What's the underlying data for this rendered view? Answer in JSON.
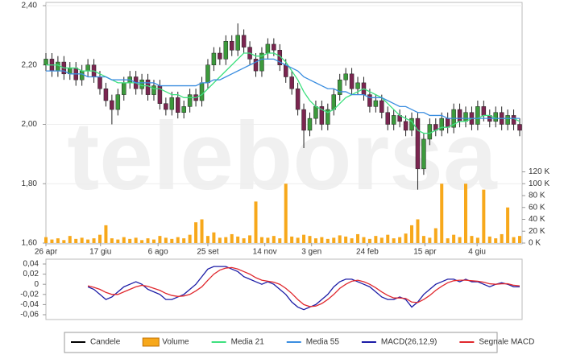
{
  "chart_data": [
    {
      "type": "candlestick",
      "watermark": "teleborsa",
      "xlim": [
        0,
        79
      ],
      "xticks": [
        {
          "value": 0,
          "label": "26 apr"
        },
        {
          "value": 9.1,
          "label": "17 giu"
        },
        {
          "value": 18.7,
          "label": "6 ago"
        },
        {
          "value": 27,
          "label": "25 set"
        },
        {
          "value": 36.5,
          "label": "14 nov"
        },
        {
          "value": 44.3,
          "label": "3 gen"
        },
        {
          "value": 53.6,
          "label": "24 feb"
        },
        {
          "value": 63.2,
          "label": "15 apr"
        },
        {
          "value": 71.9,
          "label": "4 giu"
        }
      ],
      "ylim": [
        1.6,
        2.4
      ],
      "yticks": [
        {
          "value": 1.6,
          "label": "1,60"
        },
        {
          "value": 1.8,
          "label": "1,80"
        },
        {
          "value": 2.0,
          "label": "2,00"
        },
        {
          "value": 2.2,
          "label": "2,20"
        },
        {
          "value": 2.4,
          "label": "2,40"
        }
      ],
      "y2lim": [
        0,
        400
      ],
      "y2ticks": [
        {
          "value": 0,
          "label": "0 K"
        },
        {
          "value": 20,
          "label": "20 K"
        },
        {
          "value": 40,
          "label": "40 K"
        },
        {
          "value": 60,
          "label": "60 K"
        },
        {
          "value": 80,
          "label": "80 K"
        },
        {
          "value": 100,
          "label": "100 K"
        },
        {
          "value": 120,
          "label": "120 K"
        }
      ],
      "grid": true,
      "candles": {
        "name": "Candele",
        "color": "#000000",
        "up_color": "#3c9a3c",
        "down_color": "#7b2550",
        "open": [
          2.2,
          2.22,
          2.18,
          2.21,
          2.17,
          2.19,
          2.15,
          2.18,
          2.2,
          2.16,
          2.12,
          2.08,
          2.05,
          2.1,
          2.14,
          2.16,
          2.12,
          2.15,
          2.1,
          2.13,
          2.07,
          2.05,
          2.09,
          2.04,
          2.06,
          2.1,
          2.08,
          2.14,
          2.2,
          2.24,
          2.22,
          2.28,
          2.25,
          2.3,
          2.26,
          2.22,
          2.18,
          2.24,
          2.27,
          2.25,
          2.2,
          2.16,
          2.12,
          2.05,
          1.98,
          2.02,
          2.06,
          2.0,
          2.05,
          2.1,
          2.15,
          2.17,
          2.12,
          2.14,
          2.1,
          2.06,
          2.08,
          2.04,
          2.0,
          2.03,
          2.01,
          1.98,
          2.02,
          1.85,
          1.95,
          2.0,
          1.98,
          2.02,
          1.99,
          2.05,
          2.01,
          2.04,
          2.0,
          2.06,
          2.03,
          2.01,
          2.04,
          2.0,
          2.03,
          2.0
        ],
        "high": [
          2.24,
          2.24,
          2.23,
          2.23,
          2.21,
          2.21,
          2.2,
          2.22,
          2.22,
          2.18,
          2.14,
          2.1,
          2.12,
          2.16,
          2.18,
          2.18,
          2.17,
          2.17,
          2.15,
          2.15,
          2.09,
          2.11,
          2.11,
          2.08,
          2.12,
          2.12,
          2.16,
          2.22,
          2.26,
          2.26,
          2.3,
          2.3,
          2.34,
          2.32,
          2.28,
          2.24,
          2.26,
          2.29,
          2.29,
          2.27,
          2.22,
          2.18,
          2.14,
          2.07,
          2.04,
          2.08,
          2.08,
          2.07,
          2.12,
          2.17,
          2.19,
          2.19,
          2.16,
          2.16,
          2.12,
          2.1,
          2.1,
          2.06,
          2.05,
          2.05,
          2.03,
          2.04,
          2.04,
          1.97,
          2.02,
          2.02,
          2.04,
          2.04,
          2.07,
          2.07,
          2.06,
          2.06,
          2.08,
          2.08,
          2.05,
          2.06,
          2.06,
          2.05,
          2.05,
          2.02
        ],
        "low": [
          2.18,
          2.16,
          2.16,
          2.15,
          2.15,
          2.13,
          2.13,
          2.16,
          2.14,
          2.1,
          2.06,
          2.0,
          2.03,
          2.08,
          2.12,
          2.1,
          2.1,
          2.08,
          2.08,
          2.05,
          2.03,
          2.03,
          2.02,
          2.02,
          2.04,
          2.06,
          2.06,
          2.12,
          2.18,
          2.2,
          2.2,
          2.23,
          2.23,
          2.24,
          2.2,
          2.16,
          2.16,
          2.22,
          2.23,
          2.18,
          2.14,
          2.1,
          2.03,
          1.92,
          1.96,
          2.0,
          1.98,
          1.98,
          2.03,
          2.08,
          2.13,
          2.1,
          2.1,
          2.08,
          2.04,
          2.04,
          2.02,
          1.98,
          1.98,
          1.99,
          1.96,
          1.96,
          1.78,
          1.83,
          1.93,
          1.96,
          1.96,
          1.97,
          1.97,
          1.99,
          1.99,
          1.98,
          1.98,
          2.01,
          1.99,
          1.99,
          1.98,
          1.98,
          1.98,
          1.96
        ],
        "close": [
          2.22,
          2.18,
          2.21,
          2.17,
          2.19,
          2.15,
          2.18,
          2.2,
          2.16,
          2.12,
          2.08,
          2.05,
          2.1,
          2.14,
          2.16,
          2.12,
          2.15,
          2.1,
          2.13,
          2.07,
          2.05,
          2.09,
          2.04,
          2.06,
          2.1,
          2.08,
          2.14,
          2.2,
          2.24,
          2.22,
          2.28,
          2.25,
          2.3,
          2.26,
          2.22,
          2.18,
          2.24,
          2.27,
          2.25,
          2.2,
          2.16,
          2.12,
          2.05,
          1.98,
          2.02,
          2.06,
          2.0,
          2.05,
          2.1,
          2.15,
          2.17,
          2.12,
          2.14,
          2.1,
          2.06,
          2.08,
          2.04,
          2.0,
          2.03,
          2.01,
          1.98,
          2.02,
          1.85,
          1.95,
          2.0,
          1.98,
          2.02,
          1.99,
          2.05,
          2.01,
          2.04,
          2.0,
          2.06,
          2.03,
          2.01,
          2.04,
          2.0,
          2.03,
          2.0,
          1.98
        ]
      },
      "series": [
        {
          "name": "Volume",
          "type": "bar",
          "axis": "y2",
          "color": "#f7a81b",
          "values": [
            10,
            6,
            8,
            5,
            12,
            7,
            9,
            6,
            8,
            14,
            30,
            8,
            6,
            10,
            7,
            9,
            5,
            8,
            6,
            12,
            9,
            7,
            10,
            8,
            14,
            35,
            40,
            12,
            18,
            9,
            10,
            15,
            11,
            8,
            13,
            70,
            10,
            9,
            12,
            8,
            100,
            11,
            9,
            14,
            12,
            8,
            10,
            7,
            9,
            13,
            11,
            8,
            15,
            10,
            7,
            12,
            9,
            14,
            8,
            10,
            16,
            30,
            40,
            12,
            9,
            25,
            100,
            8,
            14,
            10,
            100,
            12,
            9,
            90,
            11,
            8,
            15,
            60,
            10,
            12
          ]
        },
        {
          "name": "Media 21",
          "type": "line",
          "color": "#3ee07f",
          "values": [
            2.2,
            2.2,
            2.2,
            2.19,
            2.19,
            2.19,
            2.18,
            2.18,
            2.18,
            2.17,
            2.16,
            2.15,
            2.14,
            2.14,
            2.14,
            2.14,
            2.13,
            2.13,
            2.12,
            2.12,
            2.11,
            2.1,
            2.1,
            2.09,
            2.09,
            2.09,
            2.1,
            2.12,
            2.14,
            2.16,
            2.18,
            2.2,
            2.22,
            2.24,
            2.24,
            2.23,
            2.23,
            2.24,
            2.24,
            2.23,
            2.21,
            2.18,
            2.15,
            2.11,
            2.08,
            2.06,
            2.05,
            2.04,
            2.05,
            2.07,
            2.09,
            2.1,
            2.11,
            2.12,
            2.11,
            2.1,
            2.09,
            2.07,
            2.05,
            2.03,
            2.02,
            2.01,
            1.98,
            1.97,
            1.97,
            1.98,
            1.99,
            1.99,
            2.0,
            2.01,
            2.01,
            2.02,
            2.02,
            2.03,
            2.03,
            2.02,
            2.02,
            2.02,
            2.02,
            2.01
          ]
        },
        {
          "name": "Media 55",
          "type": "line",
          "color": "#3b8ee0",
          "values": [
            2.18,
            2.18,
            2.18,
            2.18,
            2.17,
            2.17,
            2.17,
            2.16,
            2.16,
            2.16,
            2.16,
            2.15,
            2.15,
            2.15,
            2.15,
            2.14,
            2.14,
            2.14,
            2.14,
            2.13,
            2.13,
            2.13,
            2.13,
            2.13,
            2.13,
            2.13,
            2.14,
            2.14,
            2.15,
            2.15,
            2.16,
            2.17,
            2.18,
            2.19,
            2.2,
            2.21,
            2.22,
            2.22,
            2.22,
            2.21,
            2.2,
            2.19,
            2.18,
            2.16,
            2.15,
            2.14,
            2.13,
            2.12,
            2.12,
            2.11,
            2.11,
            2.1,
            2.1,
            2.1,
            2.09,
            2.09,
            2.09,
            2.08,
            2.07,
            2.06,
            2.06,
            2.05,
            2.04,
            2.04,
            2.03,
            2.03,
            2.03,
            2.02,
            2.02,
            2.02,
            2.02,
            2.02,
            2.02,
            2.02,
            2.02,
            2.02,
            2.02,
            2.02,
            2.02,
            2.02
          ]
        }
      ]
    },
    {
      "type": "line",
      "xlim": [
        0,
        79
      ],
      "ylim": [
        -0.06,
        0.04
      ],
      "yticks": [
        {
          "value": -0.06,
          "label": "-0,06"
        },
        {
          "value": -0.04,
          "label": "-0,04"
        },
        {
          "value": -0.02,
          "label": "-0,02"
        },
        0,
        {
          "value": 0.02,
          "label": "0,02"
        },
        {
          "value": 0.04,
          "label": "0,04"
        }
      ],
      "series": [
        {
          "name": "MACD(26,12,9)",
          "type": "line",
          "color": "#1c1ca6",
          "values": [
            null,
            null,
            null,
            null,
            null,
            null,
            null,
            -0.005,
            -0.01,
            -0.02,
            -0.03,
            -0.025,
            -0.015,
            -0.005,
            0.0,
            0.005,
            0.0,
            -0.01,
            -0.015,
            -0.02,
            -0.03,
            -0.03,
            -0.025,
            -0.02,
            -0.01,
            0.0,
            0.015,
            0.03,
            0.035,
            0.035,
            0.035,
            0.03,
            0.025,
            0.015,
            0.01,
            0.005,
            0.0,
            0.005,
            0.0,
            -0.01,
            -0.02,
            -0.035,
            -0.045,
            -0.05,
            -0.045,
            -0.04,
            -0.03,
            -0.02,
            -0.005,
            0.005,
            0.01,
            0.01,
            0.005,
            0.0,
            -0.005,
            -0.015,
            -0.025,
            -0.03,
            -0.03,
            -0.025,
            -0.03,
            -0.045,
            -0.035,
            -0.02,
            -0.01,
            0.0,
            0.005,
            0.01,
            0.01,
            0.005,
            0.01,
            0.005,
            0.005,
            0.0,
            -0.005,
            0.0,
            0.003,
            0.0,
            -0.005,
            -0.005
          ]
        },
        {
          "name": "Segnale MACD",
          "type": "line",
          "color": "#e0282e",
          "values": [
            null,
            null,
            null,
            null,
            null,
            null,
            null,
            -0.003,
            -0.006,
            -0.01,
            -0.016,
            -0.02,
            -0.02,
            -0.015,
            -0.01,
            -0.005,
            -0.002,
            -0.004,
            -0.008,
            -0.012,
            -0.018,
            -0.022,
            -0.024,
            -0.023,
            -0.02,
            -0.013,
            -0.005,
            0.008,
            0.02,
            0.028,
            0.032,
            0.033,
            0.03,
            0.025,
            0.02,
            0.013,
            0.008,
            0.006,
            0.004,
            0.0,
            -0.008,
            -0.018,
            -0.03,
            -0.04,
            -0.044,
            -0.043,
            -0.038,
            -0.03,
            -0.02,
            -0.008,
            0.0,
            0.006,
            0.008,
            0.005,
            0.0,
            -0.007,
            -0.015,
            -0.022,
            -0.027,
            -0.027,
            -0.028,
            -0.035,
            -0.036,
            -0.03,
            -0.022,
            -0.012,
            -0.004,
            0.003,
            0.007,
            0.008,
            0.008,
            0.007,
            0.006,
            0.004,
            0.001,
            0.0,
            0.001,
            0.001,
            -0.002,
            -0.003
          ]
        }
      ]
    }
  ]
}
